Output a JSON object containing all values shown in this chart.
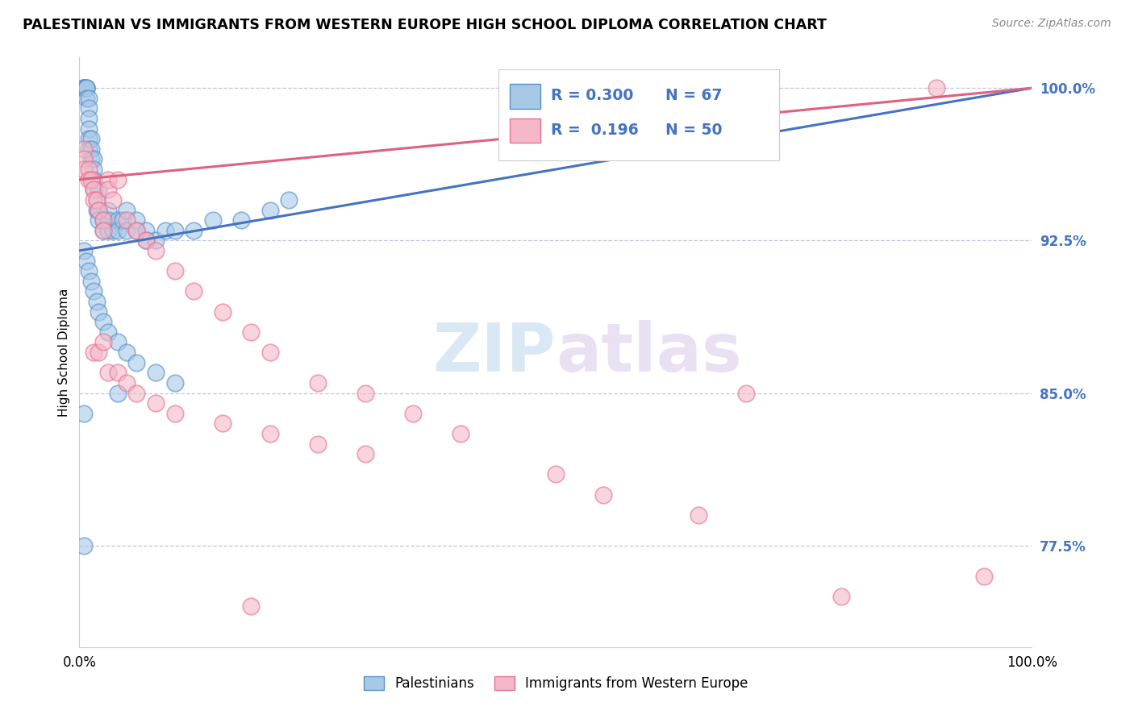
{
  "title": "PALESTINIAN VS IMMIGRANTS FROM WESTERN EUROPE HIGH SCHOOL DIPLOMA CORRELATION CHART",
  "title_fontsize": 12.5,
  "source_text": "Source: ZipAtlas.com",
  "ylabel": "High School Diploma",
  "watermark": "ZIPatlas",
  "color_blue": "#a8c8e8",
  "color_pink": "#f4b8c8",
  "color_blue_edge": "#5590c8",
  "color_pink_edge": "#e87090",
  "color_blue_line": "#4472c4",
  "color_pink_line": "#e06080",
  "color_ytick": "#4472c4",
  "xmin": 0.0,
  "xmax": 1.0,
  "ymin": 0.725,
  "ymax": 1.015,
  "yticks": [
    0.775,
    0.85,
    0.925,
    1.0
  ],
  "ytick_labels": [
    "77.5%",
    "85.0%",
    "92.5%",
    "100.0%"
  ],
  "xtick_labels": [
    "0.0%",
    "100.0%"
  ],
  "xtick_positions": [
    0.0,
    1.0
  ],
  "blue_trend": [
    0.92,
    1.0
  ],
  "pink_trend": [
    0.955,
    1.0
  ],
  "blue_x": [
    0.005,
    0.005,
    0.005,
    0.005,
    0.005,
    0.007,
    0.007,
    0.007,
    0.007,
    0.01,
    0.01,
    0.01,
    0.01,
    0.01,
    0.01,
    0.012,
    0.012,
    0.012,
    0.015,
    0.015,
    0.015,
    0.015,
    0.018,
    0.018,
    0.02,
    0.02,
    0.02,
    0.025,
    0.025,
    0.03,
    0.03,
    0.03,
    0.035,
    0.04,
    0.04,
    0.045,
    0.05,
    0.05,
    0.06,
    0.06,
    0.07,
    0.07,
    0.08,
    0.09,
    0.1,
    0.12,
    0.14,
    0.17,
    0.2,
    0.22,
    0.005,
    0.007,
    0.01,
    0.012,
    0.015,
    0.018,
    0.02,
    0.025,
    0.03,
    0.04,
    0.05,
    0.06,
    0.08,
    0.1,
    0.04,
    0.005,
    0.005
  ],
  "blue_y": [
    1.0,
    1.0,
    1.0,
    1.0,
    1.0,
    1.0,
    1.0,
    1.0,
    0.995,
    0.995,
    0.99,
    0.985,
    0.98,
    0.975,
    0.97,
    0.975,
    0.97,
    0.965,
    0.965,
    0.96,
    0.955,
    0.95,
    0.945,
    0.94,
    0.95,
    0.94,
    0.935,
    0.935,
    0.93,
    0.94,
    0.935,
    0.93,
    0.93,
    0.935,
    0.93,
    0.935,
    0.94,
    0.93,
    0.935,
    0.93,
    0.93,
    0.925,
    0.925,
    0.93,
    0.93,
    0.93,
    0.935,
    0.935,
    0.94,
    0.945,
    0.92,
    0.915,
    0.91,
    0.905,
    0.9,
    0.895,
    0.89,
    0.885,
    0.88,
    0.875,
    0.87,
    0.865,
    0.86,
    0.855,
    0.85,
    0.84,
    0.775
  ],
  "pink_x": [
    0.005,
    0.005,
    0.005,
    0.01,
    0.01,
    0.012,
    0.015,
    0.015,
    0.018,
    0.02,
    0.025,
    0.025,
    0.03,
    0.03,
    0.035,
    0.04,
    0.05,
    0.06,
    0.07,
    0.08,
    0.1,
    0.12,
    0.15,
    0.18,
    0.2,
    0.25,
    0.3,
    0.35,
    0.4,
    0.5,
    0.55,
    0.65,
    0.7,
    0.8,
    0.9,
    0.95,
    0.015,
    0.02,
    0.025,
    0.03,
    0.04,
    0.05,
    0.06,
    0.08,
    0.1,
    0.15,
    0.2,
    0.25,
    0.3,
    0.18
  ],
  "pink_y": [
    0.97,
    0.965,
    0.96,
    0.96,
    0.955,
    0.955,
    0.95,
    0.945,
    0.945,
    0.94,
    0.935,
    0.93,
    0.955,
    0.95,
    0.945,
    0.955,
    0.935,
    0.93,
    0.925,
    0.92,
    0.91,
    0.9,
    0.89,
    0.88,
    0.87,
    0.855,
    0.85,
    0.84,
    0.83,
    0.81,
    0.8,
    0.79,
    0.85,
    0.75,
    1.0,
    0.76,
    0.87,
    0.87,
    0.875,
    0.86,
    0.86,
    0.855,
    0.85,
    0.845,
    0.84,
    0.835,
    0.83,
    0.825,
    0.82,
    0.745
  ]
}
